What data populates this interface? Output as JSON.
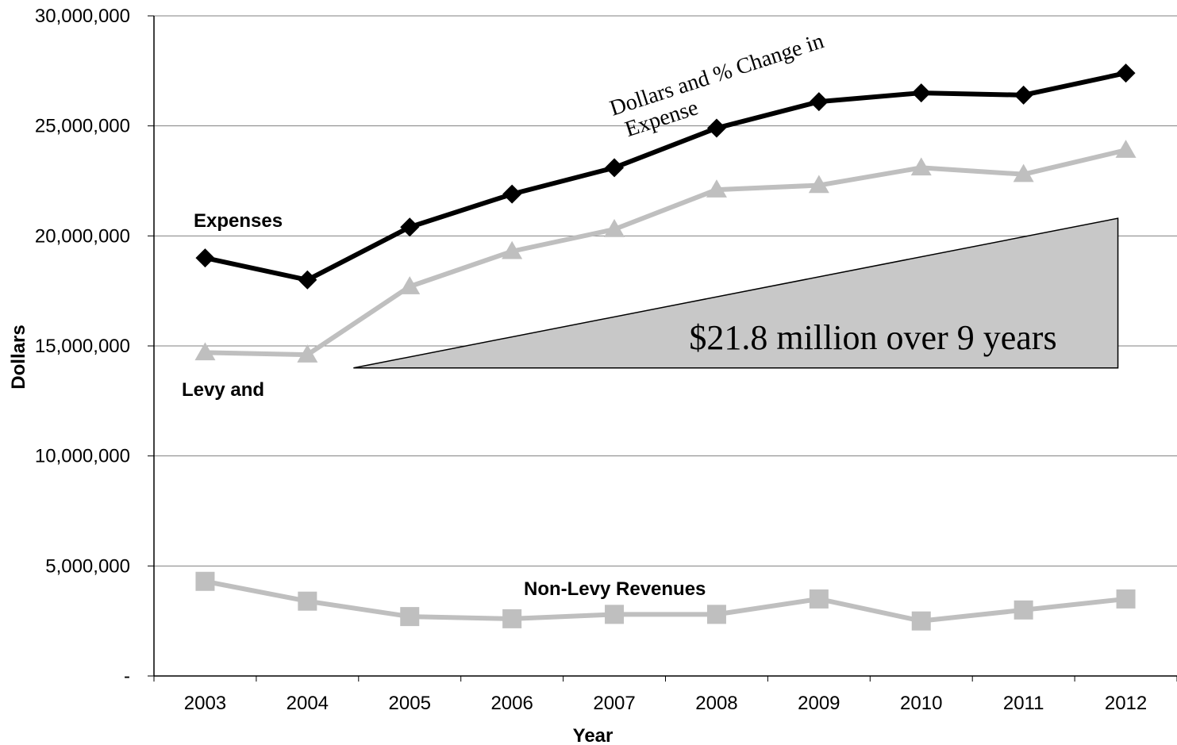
{
  "chart_data": {
    "type": "line",
    "title": "",
    "xlabel": "Year",
    "ylabel": "Dollars",
    "categories": [
      "2003",
      "2004",
      "2005",
      "2006",
      "2007",
      "2008",
      "2009",
      "2010",
      "2011",
      "2012"
    ],
    "ylim": [
      0,
      30000000
    ],
    "y_ticks": [
      0,
      5000000,
      10000000,
      15000000,
      20000000,
      25000000,
      30000000
    ],
    "y_tick_labels": [
      "-",
      "5,000,000",
      "10,000,000",
      "15,000,000",
      "20,000,000",
      "25,000,000",
      "30,000,000"
    ],
    "grid": true,
    "series": [
      {
        "name": "Expenses",
        "marker": "diamond",
        "color": "#000000",
        "values": [
          19000000,
          18000000,
          20400000,
          21900000,
          23100000,
          24900000,
          26100000,
          26500000,
          26400000,
          27400000
        ]
      },
      {
        "name": "Levy and",
        "marker": "triangle",
        "color": "#bfbfbf",
        "values": [
          14700000,
          14600000,
          17700000,
          19300000,
          20300000,
          22100000,
          22300000,
          23100000,
          22800000,
          23900000
        ]
      },
      {
        "name": "Non-Levy Revenues",
        "marker": "square",
        "color": "#bfbfbf",
        "values": [
          4300000,
          3400000,
          2700000,
          2600000,
          2800000,
          2800000,
          3500000,
          2500000,
          3000000,
          3500000
        ]
      }
    ],
    "annotations": {
      "expense_change": "Dollars and % Change in Expense",
      "expense_change_line1": "Dollars and % Change in",
      "expense_change_line2": "Expense",
      "growth_note": "$21.8 million over 9 years",
      "growth_wedge": {
        "start_value": 14000000,
        "end_value": 20800000,
        "start_year": "2004.45",
        "end_year": "2012"
      }
    },
    "colors": {
      "grid": "#808080",
      "wedge_fill": "#c8c8c8",
      "axis": "#000000"
    }
  }
}
